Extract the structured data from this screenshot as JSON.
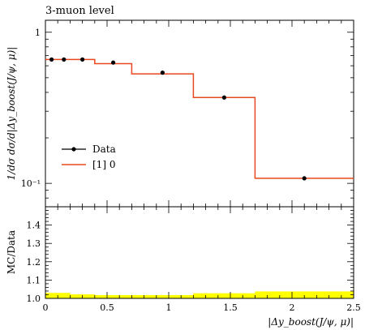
{
  "chart_data": [
    {
      "type": "line",
      "title": "3-muon level",
      "ylabel": "1/dσ dσ/d|Δy_boost(J/ψ, μ)|",
      "yscale": "log",
      "xlim": [
        0,
        2.5
      ],
      "ylim": [
        0.07,
        1.2
      ],
      "y_ticks": [
        {
          "value": 1,
          "label": "1"
        },
        {
          "value": 0.1,
          "label": "10⁻¹"
        }
      ],
      "legend_position": "lower-left",
      "series": [
        {
          "name": "Data",
          "style": "points",
          "color": "#000000",
          "x": [
            0.05,
            0.15,
            0.3,
            0.55,
            0.95,
            1.45,
            2.1
          ],
          "y": [
            0.66,
            0.66,
            0.66,
            0.63,
            0.54,
            0.37,
            0.108
          ]
        },
        {
          "name": "[1] 0",
          "style": "step",
          "color": "#e8481f",
          "edges": [
            0,
            0.1,
            0.2,
            0.4,
            0.7,
            1.2,
            1.7,
            2.5
          ],
          "values": [
            0.66,
            0.66,
            0.66,
            0.62,
            0.53,
            0.37,
            0.108
          ]
        }
      ]
    },
    {
      "type": "area",
      "ylabel": "MC/Data",
      "xlabel": "|Δy_boost(J/ψ, μ)|",
      "xlim": [
        0,
        2.5
      ],
      "ylim": [
        1.0,
        1.5
      ],
      "x_ticks": [
        "0",
        "0.5",
        "1",
        "1.5",
        "2",
        "2.5"
      ],
      "y_ticks": [
        "1.0",
        "1.1",
        "1.2",
        "1.3",
        "1.4"
      ],
      "band_color": "#ffff00",
      "band": {
        "edges": [
          0,
          0.2,
          0.4,
          0.7,
          1.2,
          1.7,
          2.5
        ],
        "upper": [
          1.03,
          1.022,
          1.018,
          1.018,
          1.028,
          1.038
        ],
        "lower": [
          1.0,
          1.0,
          1.0,
          1.0,
          1.0,
          1.0
        ]
      }
    }
  ]
}
